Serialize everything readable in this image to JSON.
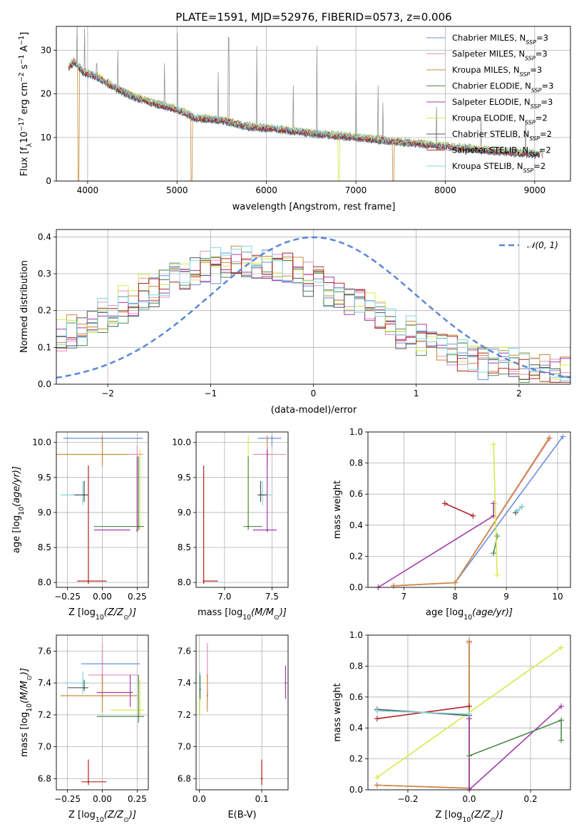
{
  "figure_title": "PLATE=1591, MJD=52976, FIBERID=0573, z=0.006",
  "colors": {
    "Chabrier MILES": "#6b8fd8",
    "Salpeter MILES": "#e58fc0",
    "Kroupa MILES": "#c98a3a",
    "Chabrier ELODIE": "#4f8a4f",
    "Salpeter ELODIE": "#a03aa8",
    "Kroupa ELODIE": "#d8e84a",
    "Chabrier STELIB": "#555555",
    "Salpeter STELIB": "#b22222",
    "Kroupa STELIB": "#7fd8e0",
    "gauss": "#5a87d6",
    "data": "#888888"
  },
  "chart_data": [
    {
      "type": "line",
      "panel": "spectrum",
      "xlabel": "wavelength [Angstrom, rest frame]",
      "ylabel_parts": [
        "Flux [f",
        "λ",
        "10",
        "−17",
        " erg cm",
        "−2",
        " s",
        "−1",
        " A",
        "−1",
        "]"
      ],
      "xlim": [
        3650,
        9400
      ],
      "ylim": [
        0,
        35.5
      ],
      "xticks": [
        4000,
        5000,
        6000,
        7000,
        8000,
        9000
      ],
      "yticks": [
        0,
        10,
        20,
        30
      ],
      "legend_position": "top-right",
      "legend": [
        {
          "name": "Chabrier MILES",
          "n": "3"
        },
        {
          "name": "Salpeter MILES",
          "n": "3"
        },
        {
          "name": "Kroupa MILES",
          "n": "3"
        },
        {
          "name": "Chabrier ELODIE",
          "n": "3"
        },
        {
          "name": "Salpeter ELODIE",
          "n": "3"
        },
        {
          "name": "Kroupa ELODIE",
          "n": "2"
        },
        {
          "name": "Chabrier STELIB",
          "n": "2"
        },
        {
          "name": "Salpeter STELIB",
          "n": "2"
        },
        {
          "name": "Kroupa STELIB",
          "n": "2"
        }
      ],
      "nssp_label": "N",
      "nssp_sub": "SSP",
      "continuum": {
        "x": [
          3780,
          3850,
          3950,
          4100,
          4300,
          4500,
          4800,
          5000,
          5200,
          5500,
          5800,
          6100,
          6500,
          7000,
          7500,
          8000,
          8500,
          9000,
          9100
        ],
        "y": [
          26,
          27.5,
          25,
          24,
          21.5,
          19.5,
          17.5,
          16.5,
          14.5,
          14,
          12.5,
          12,
          11,
          10,
          9,
          8,
          7,
          6.2,
          6
        ]
      },
      "emission_lines": [
        {
          "x": 3880,
          "peak": 36
        },
        {
          "x": 3968,
          "peak": 35
        },
        {
          "x": 4101,
          "peak": 27
        },
        {
          "x": 4340,
          "peak": 30
        },
        {
          "x": 4861,
          "peak": 27
        },
        {
          "x": 5006,
          "peak": 34
        },
        {
          "x": 5460,
          "peak": 25
        },
        {
          "x": 5577,
          "peak": 33
        },
        {
          "x": 5890,
          "peak": 31
        },
        {
          "x": 6300,
          "peak": 22
        },
        {
          "x": 6563,
          "peak": 31
        },
        {
          "x": 7000,
          "peak": 23
        },
        {
          "x": 7250,
          "peak": 22
        },
        {
          "x": 7300,
          "peak": 18
        },
        {
          "x": 7900,
          "peak": 17
        },
        {
          "x": 8400,
          "peak": 15
        },
        {
          "x": 8900,
          "peak": 14
        }
      ],
      "model_cutoffs": [
        {
          "series": "Kroupa MILES",
          "x": 3900
        },
        {
          "series": "Kroupa MILES",
          "x": 5160
        },
        {
          "series": "Kroupa MILES",
          "x": 7420
        },
        {
          "series": "Kroupa ELODIE",
          "x": 6810
        }
      ]
    },
    {
      "type": "line",
      "panel": "residual-histogram",
      "xlabel": "(data-model)/error",
      "ylabel": "Normed distribution",
      "xlim": [
        -2.5,
        2.5
      ],
      "ylim": [
        0,
        0.42
      ],
      "xticks": [
        -2,
        -1,
        0,
        1,
        2
      ],
      "yticks": [
        0.0,
        0.1,
        0.2,
        0.3,
        0.4
      ],
      "legend_position": "top-right",
      "gauss_label": "𝒩(0, 1)",
      "series_profile_peak_x": -0.7
    },
    {
      "type": "scatter",
      "panel": "age-vs-Z",
      "xlabel_parts": [
        "Z [log",
        "10",
        "(Z/Z",
        "⊙",
        ")]"
      ],
      "ylabel_parts": [
        "age  [log",
        "10",
        "(age/yr)]"
      ],
      "xlim": [
        -0.33,
        0.33
      ],
      "ylim": [
        7.93,
        10.15
      ],
      "xticks": [
        -0.25,
        0.0,
        0.25
      ],
      "yticks": [
        8.0,
        8.5,
        9.0,
        9.5,
        10.0
      ],
      "points": [
        {
          "s": "Chabrier MILES",
          "x": 0.0,
          "y": 10.06,
          "xe": [
            -0.28,
            0.29
          ],
          "ye": [
            9.95,
            10.1
          ]
        },
        {
          "s": "Kroupa MILES",
          "x": 0.0,
          "y": 9.83,
          "xe": [
            -0.33,
            0.29
          ],
          "ye": [
            9.66,
            10.1
          ]
        },
        {
          "s": "Salpeter MILES",
          "x": 0.25,
          "y": 9.83,
          "xe": [
            0.18,
            0.28
          ],
          "ye": [
            8.8,
            9.95
          ]
        },
        {
          "s": "Kroupa ELODIE",
          "x": 0.27,
          "y": 8.8,
          "xe": [
            0.18,
            0.3
          ],
          "ye": [
            8.75,
            9.9
          ]
        },
        {
          "s": "Chabrier ELODIE",
          "x": 0.26,
          "y": 8.8,
          "xe": [
            -0.06,
            0.3
          ],
          "ye": [
            8.75,
            9.8
          ]
        },
        {
          "s": "Salpeter ELODIE",
          "x": 0.25,
          "y": 8.75,
          "xe": [
            -0.06,
            0.2
          ],
          "ye": [
            8.72,
            9.8
          ]
        },
        {
          "s": "Kroupa STELIB",
          "x": -0.14,
          "y": 9.25,
          "xe": [
            -0.3,
            -0.12
          ],
          "ye": [
            9.1,
            9.45
          ]
        },
        {
          "s": "Chabrier STELIB",
          "x": -0.13,
          "y": 9.25,
          "xe": [
            -0.2,
            -0.1
          ],
          "ye": [
            9.15,
            9.45
          ]
        },
        {
          "s": "Salpeter STELIB",
          "x": -0.1,
          "y": 8.02,
          "xe": [
            -0.18,
            0.03
          ],
          "ye": [
            7.98,
            9.67
          ]
        }
      ]
    },
    {
      "type": "scatter",
      "panel": "age-vs-mass",
      "xlabel_parts": [
        "mass [log",
        "10",
        "(M/M",
        "⊙",
        ")]"
      ],
      "xlim": [
        6.7,
        7.67
      ],
      "ylim": [
        7.93,
        10.15
      ],
      "xticks": [
        7.0,
        7.5
      ],
      "yticks": [
        8.0,
        8.5,
        9.0,
        9.5,
        10.0
      ],
      "points": [
        {
          "s": "Chabrier MILES",
          "x": 7.5,
          "y": 10.06,
          "xe": [
            7.35,
            7.6
          ],
          "ye": [
            9.95,
            10.1
          ]
        },
        {
          "s": "Kroupa MILES",
          "x": 7.45,
          "y": 9.83,
          "xe": [
            7.3,
            7.55
          ],
          "ye": [
            9.66,
            10.1
          ]
        },
        {
          "s": "Salpeter MILES",
          "x": 7.45,
          "y": 9.83,
          "xe": [
            7.3,
            7.65
          ],
          "ye": [
            9.66,
            9.95
          ]
        },
        {
          "s": "Kroupa ELODIE",
          "x": 7.25,
          "y": 8.8,
          "xe": [
            7.2,
            7.4
          ],
          "ye": [
            8.75,
            10.1
          ]
        },
        {
          "s": "Chabrier ELODIE",
          "x": 7.25,
          "y": 8.8,
          "xe": [
            7.2,
            7.4
          ],
          "ye": [
            8.75,
            9.8
          ]
        },
        {
          "s": "Salpeter ELODIE",
          "x": 7.45,
          "y": 8.75,
          "xe": [
            7.3,
            7.55
          ],
          "ye": [
            8.72,
            9.9
          ]
        },
        {
          "s": "Kroupa STELIB",
          "x": 7.4,
          "y": 9.25,
          "xe": [
            7.35,
            7.5
          ],
          "ye": [
            9.1,
            9.45
          ]
        },
        {
          "s": "Chabrier STELIB",
          "x": 7.38,
          "y": 9.25,
          "xe": [
            7.35,
            7.45
          ],
          "ye": [
            9.15,
            9.45
          ]
        },
        {
          "s": "Salpeter STELIB",
          "x": 6.78,
          "y": 8.02,
          "xe": [
            6.78,
            6.93
          ],
          "ye": [
            7.98,
            9.67
          ]
        }
      ]
    },
    {
      "type": "line",
      "panel": "mass-weight-vs-age",
      "xlabel_parts": [
        "age  [log",
        "10",
        "(age/yr)]"
      ],
      "ylabel": "mass weight",
      "xlim": [
        6.3,
        10.25
      ],
      "ylim": [
        0,
        1
      ],
      "xticks": [
        7,
        8,
        9,
        10
      ],
      "yticks": [
        0.0,
        0.2,
        0.4,
        0.6,
        0.8,
        1.0
      ],
      "series": [
        {
          "name": "Chabrier MILES",
          "x": [
            6.8,
            8.0,
            10.1
          ],
          "y": [
            0.01,
            0.03,
            0.97
          ]
        },
        {
          "name": "Salpeter MILES",
          "x": [
            6.8,
            8.0,
            9.85
          ],
          "y": [
            0.01,
            0.03,
            0.96
          ]
        },
        {
          "name": "Kroupa MILES",
          "x": [
            6.8,
            8.0,
            9.83
          ],
          "y": [
            0.01,
            0.03,
            0.96
          ]
        },
        {
          "name": "Chabrier ELODIE",
          "x": [
            8.75,
            8.82
          ],
          "y": [
            0.22,
            0.33
          ]
        },
        {
          "name": "Salpeter ELODIE",
          "x": [
            6.5,
            8.75,
            8.75
          ],
          "y": [
            0.0,
            0.46,
            0.54
          ]
        },
        {
          "name": "Kroupa ELODIE",
          "x": [
            8.75,
            8.82
          ],
          "y": [
            0.92,
            0.08
          ]
        },
        {
          "name": "Chabrier STELIB",
          "x": [
            9.18,
            9.3
          ],
          "y": [
            0.48,
            0.52
          ]
        },
        {
          "name": "Salpeter STELIB",
          "x": [
            7.8,
            8.35
          ],
          "y": [
            0.54,
            0.46
          ]
        },
        {
          "name": "Kroupa STELIB",
          "x": [
            9.2,
            9.3
          ],
          "y": [
            0.49,
            0.52
          ]
        }
      ]
    },
    {
      "type": "scatter",
      "panel": "mass-vs-Z",
      "xlabel_parts": [
        "Z [log",
        "10",
        "(Z/Z",
        "⊙",
        ")]"
      ],
      "ylabel_parts": [
        "mass [log",
        "10",
        "(M/M",
        "⊙",
        ")]"
      ],
      "xlim": [
        -0.33,
        0.33
      ],
      "ylim": [
        6.73,
        7.7
      ],
      "xticks": [
        -0.25,
        0.0,
        0.25
      ],
      "yticks": [
        6.8,
        7.0,
        7.2,
        7.4,
        7.6
      ],
      "points": [
        {
          "s": "Chabrier MILES",
          "x": 0.0,
          "y": 7.52,
          "xe": [
            -0.15,
            0.27
          ],
          "ye": [
            7.3,
            7.6
          ]
        },
        {
          "s": "Salpeter MILES",
          "x": 0.0,
          "y": 7.45,
          "xe": [
            -0.1,
            0.26
          ],
          "ye": [
            7.3,
            7.65
          ]
        },
        {
          "s": "Kroupa MILES",
          "x": 0.0,
          "y": 7.32,
          "xe": [
            -0.3,
            0.25
          ],
          "ye": [
            7.22,
            7.45
          ]
        },
        {
          "s": "Kroupa ELODIE",
          "x": 0.27,
          "y": 7.23,
          "xe": [
            0.06,
            0.3
          ],
          "ye": [
            7.2,
            7.42
          ]
        },
        {
          "s": "Chabrier ELODIE",
          "x": 0.26,
          "y": 7.19,
          "xe": [
            -0.04,
            0.3
          ],
          "ye": [
            7.15,
            7.45
          ]
        },
        {
          "s": "Salpeter ELODIE",
          "x": 0.2,
          "y": 7.34,
          "xe": [
            -0.04,
            0.22
          ],
          "ye": [
            7.25,
            7.45
          ]
        },
        {
          "s": "Kroupa STELIB",
          "x": -0.14,
          "y": 7.4,
          "xe": [
            -0.28,
            -0.1
          ],
          "ye": [
            7.33,
            7.47
          ]
        },
        {
          "s": "Chabrier STELIB",
          "x": -0.13,
          "y": 7.37,
          "xe": [
            -0.25,
            -0.1
          ],
          "ye": [
            7.35,
            7.42
          ]
        },
        {
          "s": "Salpeter STELIB",
          "x": -0.1,
          "y": 6.78,
          "xe": [
            -0.15,
            0.03
          ],
          "ye": [
            6.76,
            6.92
          ]
        }
      ]
    },
    {
      "type": "scatter",
      "panel": "mass-vs-EBV",
      "xlabel": "E(B-V)",
      "xlim": [
        -0.005,
        0.142
      ],
      "ylim": [
        6.73,
        7.7
      ],
      "xticks": [
        0.0,
        0.1
      ],
      "yticks": [
        6.8,
        7.0,
        7.2,
        7.4,
        7.6
      ],
      "points": [
        {
          "s": "Salpeter MILES",
          "x": 0.013,
          "y": 7.45,
          "ye": [
            7.3,
            7.65
          ]
        },
        {
          "s": "Kroupa MILES",
          "x": 0.013,
          "y": 7.32,
          "ye": [
            7.22,
            7.45
          ]
        },
        {
          "s": "Kroupa ELODIE",
          "x": 0.001,
          "y": 7.3,
          "ye": [
            7.2,
            7.42
          ]
        },
        {
          "s": "Kroupa STELIB",
          "x": 0.001,
          "y": 7.4,
          "ye": [
            7.33,
            7.47
          ]
        },
        {
          "s": "Chabrier ELODIE",
          "x": 0.0015,
          "y": 7.36,
          "ye": [
            7.3,
            7.45
          ]
        },
        {
          "s": "Salpeter ELODIE",
          "x": 0.138,
          "y": 7.4,
          "ye": [
            7.3,
            7.51
          ]
        },
        {
          "s": "Salpeter STELIB",
          "x": 0.1,
          "y": 6.8,
          "ye": [
            6.76,
            6.92
          ]
        }
      ]
    },
    {
      "type": "line",
      "panel": "mass-weight-vs-Z",
      "xlabel_parts": [
        "Z [log",
        "10",
        "(Z/Z",
        "⊙",
        ")]"
      ],
      "ylabel": "mass weight",
      "xlim": [
        -0.33,
        0.33
      ],
      "ylim": [
        0,
        1
      ],
      "xticks": [
        -0.2,
        0.0,
        0.2
      ],
      "yticks": [
        0.0,
        0.2,
        0.4,
        0.6,
        0.8,
        1.0
      ],
      "series": [
        {
          "name": "Chabrier MILES",
          "x": [
            -0.3,
            0.0,
            0.0
          ],
          "y": [
            0.03,
            0.01,
            0.96
          ]
        },
        {
          "name": "Salpeter MILES",
          "x": [
            -0.3,
            0.0,
            0.0
          ],
          "y": [
            0.03,
            0.01,
            0.95
          ]
        },
        {
          "name": "Kroupa MILES",
          "x": [
            -0.3,
            0.0,
            0.0
          ],
          "y": [
            0.03,
            0.01,
            0.96
          ]
        },
        {
          "name": "Kroupa ELODIE",
          "x": [
            -0.3,
            0.3
          ],
          "y": [
            0.08,
            0.92
          ]
        },
        {
          "name": "Salpeter ELODIE",
          "x": [
            0.0,
            0.0,
            0.3
          ],
          "y": [
            0.46,
            0.0,
            0.54
          ]
        },
        {
          "name": "Chabrier ELODIE",
          "x": [
            0.0,
            0.3,
            0.3
          ],
          "y": [
            0.22,
            0.45,
            0.32
          ]
        },
        {
          "name": "Salpeter STELIB",
          "x": [
            -0.3,
            0.0
          ],
          "y": [
            0.46,
            0.54
          ]
        },
        {
          "name": "Chabrier STELIB",
          "x": [
            -0.3,
            0.0
          ],
          "y": [
            0.52,
            0.48
          ]
        },
        {
          "name": "Kroupa STELIB",
          "x": [
            -0.3,
            0.0
          ],
          "y": [
            0.51,
            0.49
          ]
        }
      ]
    }
  ]
}
